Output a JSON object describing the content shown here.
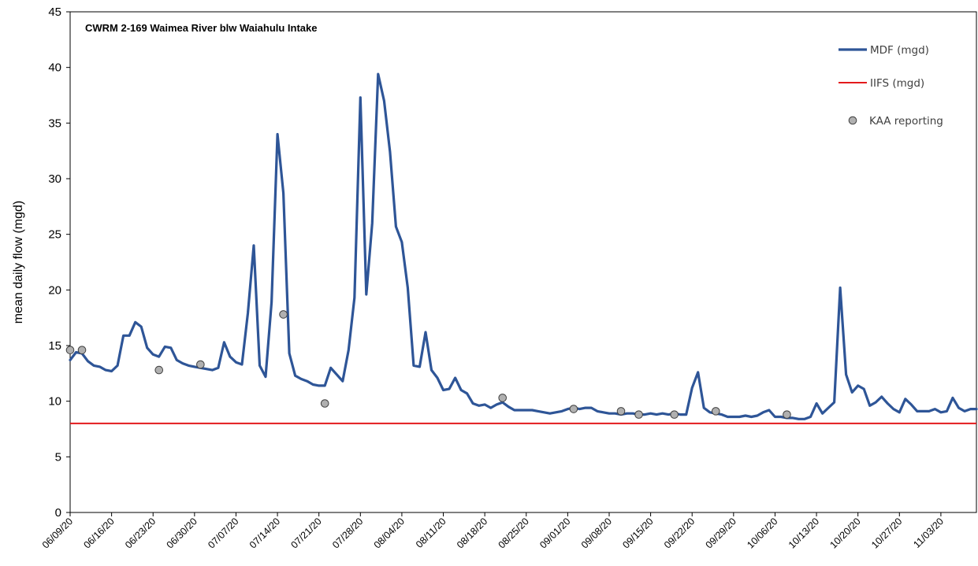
{
  "chart_data": {
    "type": "line",
    "title": "CWRM 2-169 Waimea River blw Waiahulu Intake",
    "ylabel": "mean daily flow (mgd)",
    "xlabel": "",
    "ylim": [
      0,
      45
    ],
    "yticks": [
      0,
      5,
      10,
      15,
      20,
      25,
      30,
      35,
      40,
      45
    ],
    "x_tick_labels": [
      "06/09/20",
      "06/16/20",
      "06/23/20",
      "06/30/20",
      "07/07/20",
      "07/14/20",
      "07/21/20",
      "07/28/20",
      "08/04/20",
      "08/11/20",
      "08/18/20",
      "08/25/20",
      "09/01/20",
      "09/08/20",
      "09/15/20",
      "09/22/20",
      "09/29/20",
      "10/06/20",
      "10/13/20",
      "10/20/20",
      "10/27/20",
      "11/03/20"
    ],
    "x_tick_days": [
      0,
      7,
      14,
      21,
      28,
      35,
      42,
      49,
      56,
      63,
      70,
      77,
      84,
      91,
      98,
      105,
      112,
      119,
      126,
      133,
      140,
      147
    ],
    "x_range_days": [
      0,
      153
    ],
    "start_date": "2020-06-09",
    "grid": false,
    "legend_position": "top-right",
    "series": [
      {
        "name": "MDF (mgd)",
        "kind": "line",
        "color": "#2E5597",
        "x_days": [
          0,
          1,
          2,
          3,
          4,
          5,
          6,
          7,
          8,
          9,
          10,
          11,
          12,
          13,
          14,
          15,
          16,
          17,
          18,
          19,
          20,
          21,
          22,
          23,
          24,
          25,
          26,
          27,
          28,
          29,
          30,
          31,
          32,
          33,
          34,
          35,
          36,
          37,
          38,
          39,
          40,
          41,
          42,
          43,
          44,
          45,
          46,
          47,
          48,
          49,
          50,
          51,
          52,
          53,
          54,
          55,
          56,
          57,
          58,
          59,
          60,
          61,
          62,
          63,
          64,
          65,
          66,
          67,
          68,
          69,
          70,
          71,
          72,
          73,
          74,
          75,
          76,
          77,
          78,
          79,
          80,
          81,
          82,
          83,
          84,
          85,
          86,
          87,
          88,
          89,
          90,
          91,
          92,
          93,
          94,
          95,
          96,
          97,
          98,
          99,
          100,
          101,
          102,
          103,
          104,
          105,
          106,
          107,
          108,
          109,
          110,
          111,
          112,
          113,
          114,
          115,
          116,
          117,
          118,
          119,
          120,
          121,
          122,
          123,
          124,
          125,
          126,
          127,
          128,
          129,
          130,
          131,
          132,
          133,
          134,
          135,
          136,
          137,
          138,
          139,
          140,
          141,
          142,
          143,
          144,
          145,
          146,
          147,
          148,
          149,
          150,
          151,
          152,
          153
        ],
        "values": [
          13.7,
          14.4,
          14.3,
          13.6,
          13.2,
          13.1,
          12.8,
          12.7,
          13.2,
          15.9,
          15.9,
          17.1,
          16.7,
          14.8,
          14.2,
          14.0,
          14.9,
          14.8,
          13.7,
          13.4,
          13.2,
          13.1,
          13.0,
          12.9,
          12.8,
          13.0,
          15.3,
          14.0,
          13.5,
          13.3,
          17.9,
          24.0,
          13.2,
          12.2,
          18.9,
          34.0,
          28.7,
          14.3,
          12.3,
          12.0,
          11.8,
          11.5,
          11.4,
          11.4,
          13.0,
          12.4,
          11.8,
          14.6,
          19.3,
          37.3,
          19.6,
          26.0,
          39.4,
          37.0,
          32.4,
          25.7,
          24.3,
          20.2,
          13.2,
          13.1,
          16.2,
          12.8,
          12.1,
          11.0,
          11.1,
          12.1,
          11.0,
          10.7,
          9.8,
          9.6,
          9.7,
          9.4,
          9.7,
          9.9,
          9.5,
          9.2,
          9.2,
          9.2,
          9.2,
          9.1,
          9.0,
          8.9,
          9.0,
          9.1,
          9.3,
          9.4,
          9.3,
          9.4,
          9.4,
          9.1,
          9.0,
          8.9,
          8.9,
          8.8,
          8.9,
          8.9,
          8.8,
          8.8,
          8.9,
          8.8,
          8.9,
          8.8,
          8.9,
          8.8,
          8.8,
          11.2,
          12.6,
          9.4,
          9.0,
          8.9,
          8.8,
          8.6,
          8.6,
          8.6,
          8.7,
          8.6,
          8.7,
          9.0,
          9.2,
          8.6,
          8.6,
          8.5,
          8.5,
          8.4,
          8.4,
          8.6,
          9.8,
          8.9,
          9.4,
          9.9,
          20.2,
          12.4,
          10.8,
          11.4,
          11.1,
          9.6,
          9.9,
          10.4,
          9.8,
          9.3,
          9.0,
          10.2,
          9.7,
          9.1,
          9.1,
          9.1,
          9.3,
          9.0,
          9.1,
          10.3,
          9.4,
          9.1,
          9.3,
          9.3
        ]
      },
      {
        "name": "IIFS (mgd)",
        "kind": "constant",
        "color": "#E31A1C",
        "value": 8.0
      },
      {
        "name": "KAA reporting",
        "kind": "scatter",
        "color": "#B0B0B0",
        "x_days": [
          0,
          2,
          15,
          22,
          43,
          36,
          73,
          85,
          93,
          96,
          102,
          109,
          121
        ],
        "values": [
          14.6,
          14.6,
          12.8,
          13.3,
          9.8,
          17.8,
          10.3,
          9.3,
          9.1,
          8.8,
          8.8,
          9.1,
          8.8
        ]
      }
    ]
  }
}
